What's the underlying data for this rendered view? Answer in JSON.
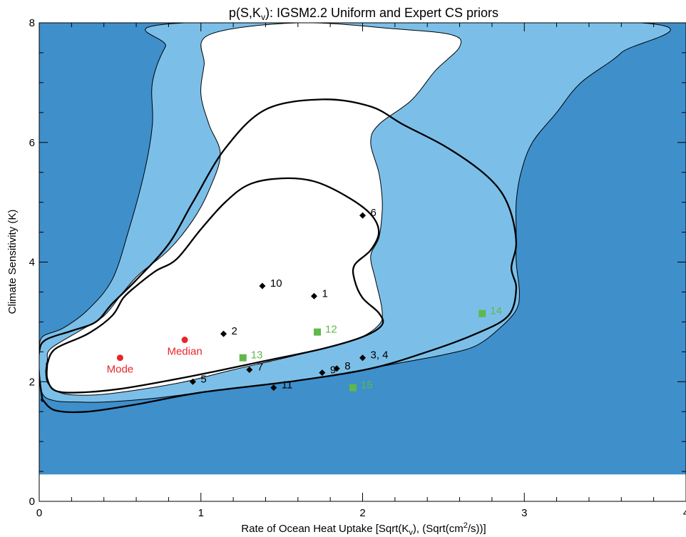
{
  "chart_data": {
    "type": "scatter",
    "title": "p(S,K",
    "title_sub": "v",
    "title_rest": "): IGSM2.2 Uniform and Expert CS priors",
    "xlabel_parts": [
      "Rate of Ocean Heat Uptake [Sqrt(K",
      "v",
      "), (Sqrt(cm",
      "2",
      "/s))]"
    ],
    "ylabel": "Climate Sensitivity (K)",
    "xlim": [
      0,
      4
    ],
    "ylim": [
      0,
      8
    ],
    "x_ticks": [
      "0",
      "1",
      "2",
      "3",
      "4"
    ],
    "y_ticks": [
      "0",
      "2",
      "4",
      "6",
      "8"
    ],
    "colors": {
      "outside": "#3f8fcb",
      "region_90": "#7bbfe9",
      "region_50": "#ffffff",
      "black_points": "#000000",
      "green_points": "#5fb84a",
      "red_points": "#e8262a"
    },
    "filled_region_ymin": 0.45,
    "regions": {
      "light_blue_90": [
        [
          0.0,
          2.5
        ],
        [
          0.02,
          2.75
        ],
        [
          0.15,
          2.9
        ],
        [
          0.3,
          3.2
        ],
        [
          0.45,
          3.7
        ],
        [
          0.55,
          4.5
        ],
        [
          0.65,
          5.5
        ],
        [
          0.7,
          6.3
        ],
        [
          0.7,
          7.0
        ],
        [
          0.78,
          7.6
        ],
        [
          0.9,
          8.0
        ],
        [
          3.72,
          8.0
        ],
        [
          3.6,
          7.5
        ],
        [
          3.35,
          7.0
        ],
        [
          3.2,
          6.5
        ],
        [
          3.05,
          6.0
        ],
        [
          2.98,
          5.5
        ],
        [
          2.95,
          5.0
        ],
        [
          2.95,
          4.5
        ],
        [
          2.95,
          4.0
        ],
        [
          2.97,
          3.5
        ],
        [
          2.95,
          3.2
        ],
        [
          2.85,
          2.9
        ],
        [
          2.7,
          2.6
        ],
        [
          2.5,
          2.45
        ],
        [
          2.2,
          2.3
        ],
        [
          1.9,
          2.15
        ],
        [
          1.5,
          1.98
        ],
        [
          1.0,
          1.82
        ],
        [
          0.7,
          1.72
        ],
        [
          0.4,
          1.66
        ],
        [
          0.25,
          1.66
        ],
        [
          0.1,
          1.68
        ],
        [
          0.02,
          1.8
        ],
        [
          0.0,
          2.2
        ]
      ],
      "white_50": [
        [
          0.05,
          2.35
        ],
        [
          0.07,
          2.55
        ],
        [
          0.25,
          2.85
        ],
        [
          0.4,
          3.1
        ],
        [
          0.52,
          3.5
        ],
        [
          0.62,
          3.8
        ],
        [
          0.8,
          4.2
        ],
        [
          0.95,
          4.7
        ],
        [
          1.05,
          5.2
        ],
        [
          1.12,
          5.8
        ],
        [
          1.05,
          6.3
        ],
        [
          1.0,
          6.8
        ],
        [
          1.02,
          7.3
        ],
        [
          1.05,
          7.8
        ],
        [
          1.6,
          8.0
        ],
        [
          2.2,
          7.9
        ],
        [
          2.55,
          7.8
        ],
        [
          2.6,
          7.6
        ],
        [
          2.45,
          7.2
        ],
        [
          2.3,
          6.7
        ],
        [
          2.1,
          6.3
        ],
        [
          2.05,
          6.0
        ],
        [
          2.1,
          5.5
        ],
        [
          2.12,
          5.1
        ],
        [
          2.12,
          4.8
        ],
        [
          2.1,
          4.4
        ],
        [
          2.05,
          4.1
        ],
        [
          2.08,
          3.7
        ],
        [
          2.12,
          3.2
        ],
        [
          2.1,
          2.95
        ],
        [
          1.95,
          2.7
        ],
        [
          1.6,
          2.45
        ],
        [
          1.2,
          2.2
        ],
        [
          0.9,
          2.0
        ],
        [
          0.6,
          1.86
        ],
        [
          0.35,
          1.78
        ],
        [
          0.15,
          1.8
        ],
        [
          0.06,
          1.95
        ],
        [
          0.04,
          2.15
        ]
      ]
    },
    "contours": [
      [
        [
          0.02,
          1.7
        ],
        [
          0.0,
          2.1
        ],
        [
          0.0,
          2.5
        ],
        [
          0.04,
          2.7
        ],
        [
          0.2,
          2.85
        ],
        [
          0.35,
          3.0
        ],
        [
          0.45,
          3.3
        ],
        [
          0.6,
          3.7
        ],
        [
          0.8,
          4.3
        ],
        [
          0.95,
          5.0
        ],
        [
          1.15,
          5.9
        ],
        [
          1.4,
          6.55
        ],
        [
          1.75,
          6.72
        ],
        [
          2.05,
          6.6
        ],
        [
          2.25,
          6.3
        ],
        [
          2.5,
          5.95
        ],
        [
          2.72,
          5.55
        ],
        [
          2.85,
          5.2
        ],
        [
          2.92,
          4.8
        ],
        [
          2.95,
          4.3
        ],
        [
          2.92,
          3.9
        ],
        [
          2.95,
          3.55
        ],
        [
          2.9,
          3.1
        ],
        [
          2.7,
          2.8
        ],
        [
          2.4,
          2.5
        ],
        [
          2.05,
          2.22
        ],
        [
          1.6,
          2.02
        ],
        [
          1.0,
          1.82
        ],
        [
          0.6,
          1.62
        ],
        [
          0.3,
          1.5
        ],
        [
          0.1,
          1.52
        ],
        [
          0.02,
          1.7
        ]
      ],
      [
        [
          0.05,
          2.3
        ],
        [
          0.1,
          2.55
        ],
        [
          0.3,
          2.8
        ],
        [
          0.45,
          3.1
        ],
        [
          0.52,
          3.4
        ],
        [
          0.6,
          3.6
        ],
        [
          0.72,
          3.85
        ],
        [
          0.85,
          4.05
        ],
        [
          1.0,
          4.55
        ],
        [
          1.15,
          5.0
        ],
        [
          1.3,
          5.3
        ],
        [
          1.5,
          5.4
        ],
        [
          1.7,
          5.35
        ],
        [
          1.9,
          5.1
        ],
        [
          2.05,
          4.8
        ],
        [
          2.1,
          4.5
        ],
        [
          2.05,
          4.2
        ],
        [
          1.95,
          3.95
        ],
        [
          1.95,
          3.7
        ],
        [
          2.0,
          3.4
        ],
        [
          2.1,
          3.15
        ],
        [
          2.12,
          2.95
        ],
        [
          2.0,
          2.75
        ],
        [
          1.75,
          2.55
        ],
        [
          1.4,
          2.35
        ],
        [
          1.1,
          2.18
        ],
        [
          0.8,
          2.02
        ],
        [
          0.5,
          1.88
        ],
        [
          0.25,
          1.82
        ],
        [
          0.1,
          1.85
        ],
        [
          0.05,
          2.05
        ],
        [
          0.05,
          2.3
        ]
      ]
    ],
    "series": [
      {
        "name": "",
        "marker": "diamond",
        "color": "#000000",
        "points": [
          {
            "x": 1.7,
            "y": 3.43,
            "label": "1"
          },
          {
            "x": 1.14,
            "y": 2.8,
            "label": "2"
          },
          {
            "x": 2.0,
            "y": 2.4,
            "label": "3, 4"
          },
          {
            "x": 0.95,
            "y": 2.0,
            "label": "5"
          },
          {
            "x": 2.0,
            "y": 4.78,
            "label": "6"
          },
          {
            "x": 1.3,
            "y": 2.2,
            "label": "7"
          },
          {
            "x": 1.84,
            "y": 2.22,
            "label": "8"
          },
          {
            "x": 1.75,
            "y": 2.15,
            "label": "9"
          },
          {
            "x": 1.38,
            "y": 3.6,
            "label": "10"
          },
          {
            "x": 1.45,
            "y": 1.9,
            "label": "11"
          }
        ]
      },
      {
        "name": "",
        "marker": "square",
        "color": "#5fb84a",
        "points": [
          {
            "x": 1.72,
            "y": 2.83,
            "label": "12"
          },
          {
            "x": 1.26,
            "y": 2.4,
            "label": "13"
          },
          {
            "x": 2.74,
            "y": 3.14,
            "label": "14"
          },
          {
            "x": 1.94,
            "y": 1.9,
            "label": "15"
          }
        ]
      },
      {
        "name": "",
        "marker": "circle",
        "color": "#e8262a",
        "points": [
          {
            "x": 0.5,
            "y": 2.4,
            "label": "Mode"
          },
          {
            "x": 0.9,
            "y": 2.7,
            "label": "Median"
          }
        ]
      }
    ]
  }
}
